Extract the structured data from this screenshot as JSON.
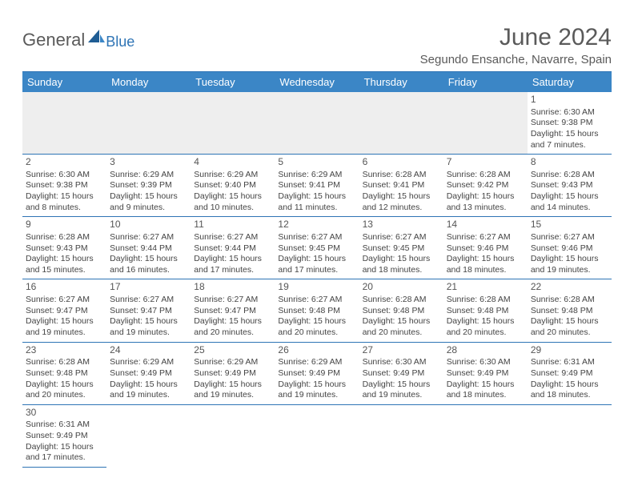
{
  "brand": {
    "name_main": "General",
    "name_sub": "Blue",
    "accent_color": "#2e74b5",
    "sail_color": "#1f5d94"
  },
  "title": "June 2024",
  "location": "Segundo Ensanche, Navarre, Spain",
  "header_bg": "#3b86c6",
  "weekdays": [
    "Sunday",
    "Monday",
    "Tuesday",
    "Wednesday",
    "Thursday",
    "Friday",
    "Saturday"
  ],
  "weeks": [
    [
      null,
      null,
      null,
      null,
      null,
      null,
      {
        "n": "1",
        "sr": "Sunrise: 6:30 AM",
        "ss": "Sunset: 9:38 PM",
        "d1": "Daylight: 15 hours",
        "d2": "and 7 minutes."
      }
    ],
    [
      {
        "n": "2",
        "sr": "Sunrise: 6:30 AM",
        "ss": "Sunset: 9:38 PM",
        "d1": "Daylight: 15 hours",
        "d2": "and 8 minutes."
      },
      {
        "n": "3",
        "sr": "Sunrise: 6:29 AM",
        "ss": "Sunset: 9:39 PM",
        "d1": "Daylight: 15 hours",
        "d2": "and 9 minutes."
      },
      {
        "n": "4",
        "sr": "Sunrise: 6:29 AM",
        "ss": "Sunset: 9:40 PM",
        "d1": "Daylight: 15 hours",
        "d2": "and 10 minutes."
      },
      {
        "n": "5",
        "sr": "Sunrise: 6:29 AM",
        "ss": "Sunset: 9:41 PM",
        "d1": "Daylight: 15 hours",
        "d2": "and 11 minutes."
      },
      {
        "n": "6",
        "sr": "Sunrise: 6:28 AM",
        "ss": "Sunset: 9:41 PM",
        "d1": "Daylight: 15 hours",
        "d2": "and 12 minutes."
      },
      {
        "n": "7",
        "sr": "Sunrise: 6:28 AM",
        "ss": "Sunset: 9:42 PM",
        "d1": "Daylight: 15 hours",
        "d2": "and 13 minutes."
      },
      {
        "n": "8",
        "sr": "Sunrise: 6:28 AM",
        "ss": "Sunset: 9:43 PM",
        "d1": "Daylight: 15 hours",
        "d2": "and 14 minutes."
      }
    ],
    [
      {
        "n": "9",
        "sr": "Sunrise: 6:28 AM",
        "ss": "Sunset: 9:43 PM",
        "d1": "Daylight: 15 hours",
        "d2": "and 15 minutes."
      },
      {
        "n": "10",
        "sr": "Sunrise: 6:27 AM",
        "ss": "Sunset: 9:44 PM",
        "d1": "Daylight: 15 hours",
        "d2": "and 16 minutes."
      },
      {
        "n": "11",
        "sr": "Sunrise: 6:27 AM",
        "ss": "Sunset: 9:44 PM",
        "d1": "Daylight: 15 hours",
        "d2": "and 17 minutes."
      },
      {
        "n": "12",
        "sr": "Sunrise: 6:27 AM",
        "ss": "Sunset: 9:45 PM",
        "d1": "Daylight: 15 hours",
        "d2": "and 17 minutes."
      },
      {
        "n": "13",
        "sr": "Sunrise: 6:27 AM",
        "ss": "Sunset: 9:45 PM",
        "d1": "Daylight: 15 hours",
        "d2": "and 18 minutes."
      },
      {
        "n": "14",
        "sr": "Sunrise: 6:27 AM",
        "ss": "Sunset: 9:46 PM",
        "d1": "Daylight: 15 hours",
        "d2": "and 18 minutes."
      },
      {
        "n": "15",
        "sr": "Sunrise: 6:27 AM",
        "ss": "Sunset: 9:46 PM",
        "d1": "Daylight: 15 hours",
        "d2": "and 19 minutes."
      }
    ],
    [
      {
        "n": "16",
        "sr": "Sunrise: 6:27 AM",
        "ss": "Sunset: 9:47 PM",
        "d1": "Daylight: 15 hours",
        "d2": "and 19 minutes."
      },
      {
        "n": "17",
        "sr": "Sunrise: 6:27 AM",
        "ss": "Sunset: 9:47 PM",
        "d1": "Daylight: 15 hours",
        "d2": "and 19 minutes."
      },
      {
        "n": "18",
        "sr": "Sunrise: 6:27 AM",
        "ss": "Sunset: 9:47 PM",
        "d1": "Daylight: 15 hours",
        "d2": "and 20 minutes."
      },
      {
        "n": "19",
        "sr": "Sunrise: 6:27 AM",
        "ss": "Sunset: 9:48 PM",
        "d1": "Daylight: 15 hours",
        "d2": "and 20 minutes."
      },
      {
        "n": "20",
        "sr": "Sunrise: 6:28 AM",
        "ss": "Sunset: 9:48 PM",
        "d1": "Daylight: 15 hours",
        "d2": "and 20 minutes."
      },
      {
        "n": "21",
        "sr": "Sunrise: 6:28 AM",
        "ss": "Sunset: 9:48 PM",
        "d1": "Daylight: 15 hours",
        "d2": "and 20 minutes."
      },
      {
        "n": "22",
        "sr": "Sunrise: 6:28 AM",
        "ss": "Sunset: 9:48 PM",
        "d1": "Daylight: 15 hours",
        "d2": "and 20 minutes."
      }
    ],
    [
      {
        "n": "23",
        "sr": "Sunrise: 6:28 AM",
        "ss": "Sunset: 9:48 PM",
        "d1": "Daylight: 15 hours",
        "d2": "and 20 minutes."
      },
      {
        "n": "24",
        "sr": "Sunrise: 6:29 AM",
        "ss": "Sunset: 9:49 PM",
        "d1": "Daylight: 15 hours",
        "d2": "and 19 minutes."
      },
      {
        "n": "25",
        "sr": "Sunrise: 6:29 AM",
        "ss": "Sunset: 9:49 PM",
        "d1": "Daylight: 15 hours",
        "d2": "and 19 minutes."
      },
      {
        "n": "26",
        "sr": "Sunrise: 6:29 AM",
        "ss": "Sunset: 9:49 PM",
        "d1": "Daylight: 15 hours",
        "d2": "and 19 minutes."
      },
      {
        "n": "27",
        "sr": "Sunrise: 6:30 AM",
        "ss": "Sunset: 9:49 PM",
        "d1": "Daylight: 15 hours",
        "d2": "and 19 minutes."
      },
      {
        "n": "28",
        "sr": "Sunrise: 6:30 AM",
        "ss": "Sunset: 9:49 PM",
        "d1": "Daylight: 15 hours",
        "d2": "and 18 minutes."
      },
      {
        "n": "29",
        "sr": "Sunrise: 6:31 AM",
        "ss": "Sunset: 9:49 PM",
        "d1": "Daylight: 15 hours",
        "d2": "and 18 minutes."
      }
    ],
    [
      {
        "n": "30",
        "sr": "Sunrise: 6:31 AM",
        "ss": "Sunset: 9:49 PM",
        "d1": "Daylight: 15 hours",
        "d2": "and 17 minutes."
      },
      null,
      null,
      null,
      null,
      null,
      null
    ]
  ]
}
